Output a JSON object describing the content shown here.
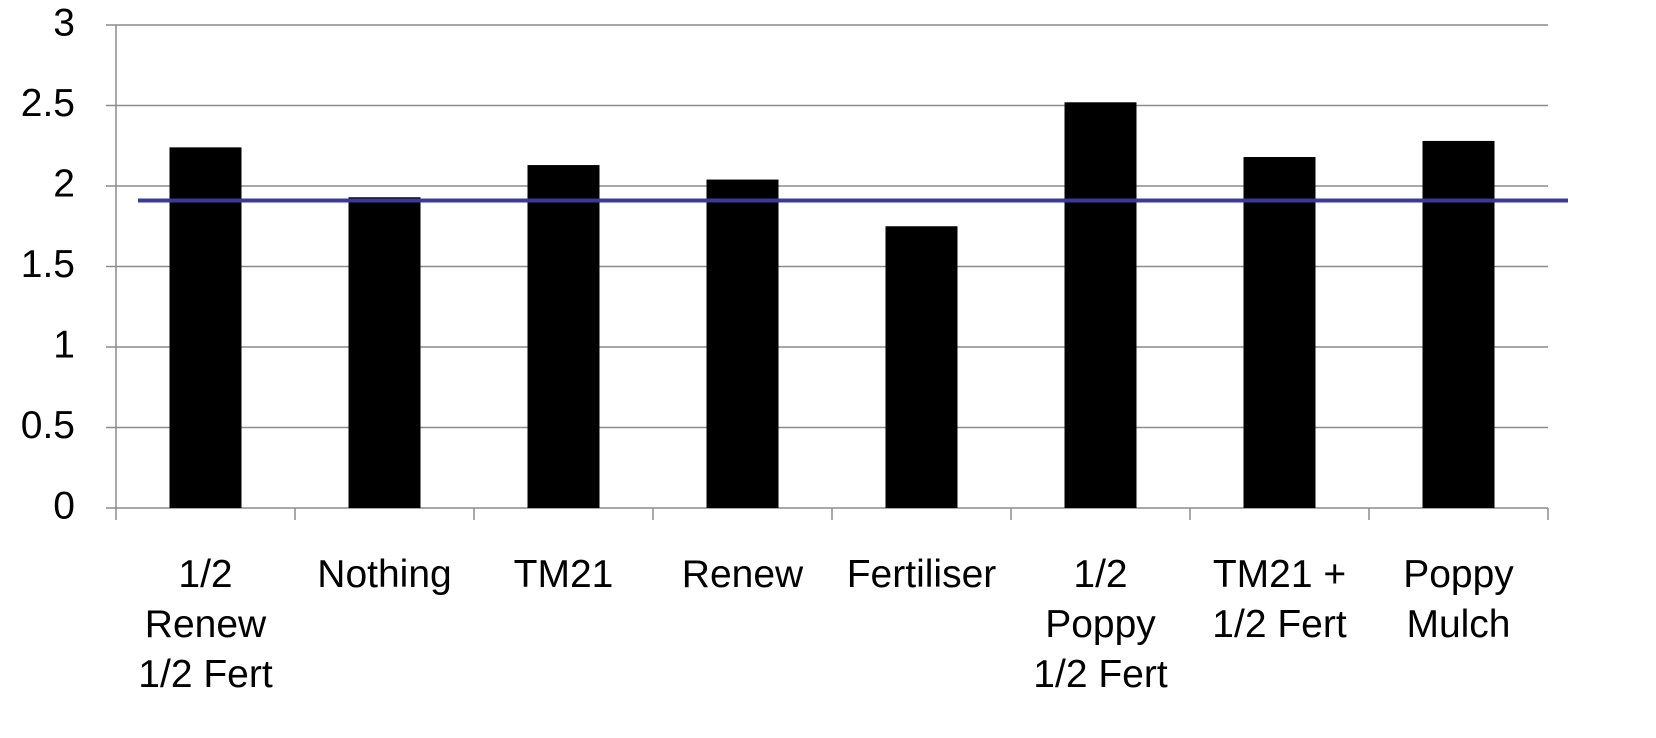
{
  "chart_data": {
    "type": "bar",
    "categories": [
      "1/2\nRenew\n1/2 Fert",
      "Nothing",
      "TM21",
      "Renew",
      "Fertiliser",
      "1/2\nPoppy\n1/2 Fert",
      "TM21 +\n1/2 Fert",
      "Poppy\nMulch"
    ],
    "values": [
      2.24,
      1.93,
      2.13,
      2.04,
      1.75,
      2.52,
      2.18,
      2.28
    ],
    "color": "#000000",
    "ylim": [
      0,
      3
    ],
    "yticks": [
      0,
      0.5,
      1,
      1.5,
      2,
      2.5,
      3
    ],
    "grid": true,
    "reference_line": {
      "value": 1.91,
      "color": "#3a3a9c"
    }
  }
}
